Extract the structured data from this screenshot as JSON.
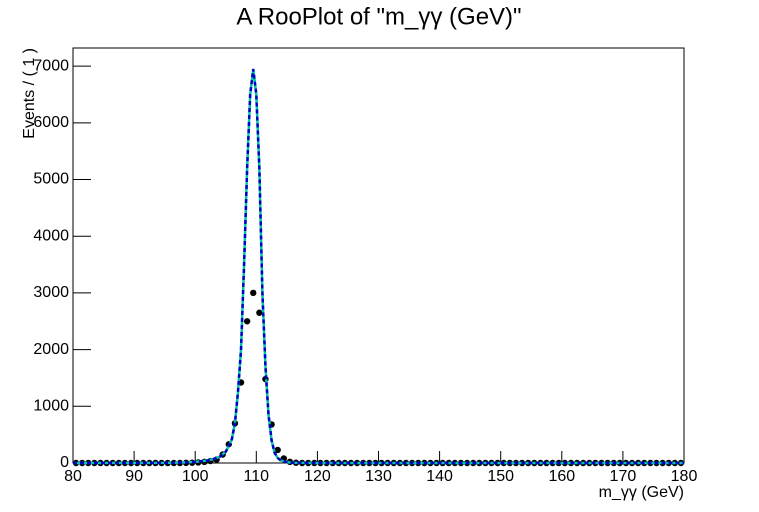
{
  "chart_data": {
    "type": "scatter",
    "title": "A RooPlot of \"m_γγ (GeV)\"",
    "x_label": "m_γγ (GeV)",
    "y_label": "Events / ( 1 )",
    "xlim": [
      80,
      180
    ],
    "xticks": [
      80,
      90,
      100,
      110,
      120,
      130,
      140,
      150,
      160,
      170,
      180
    ],
    "ylim": [
      0,
      7320
    ],
    "yticks": [
      0,
      1000,
      2000,
      3000,
      4000,
      5000,
      6000,
      7000
    ],
    "series": [
      {
        "type": "scatter",
        "color": "#000000",
        "x": [
          80.5,
          81.5,
          82.5,
          83.5,
          84.5,
          85.5,
          86.5,
          87.5,
          88.5,
          89.5,
          90.5,
          91.5,
          92.5,
          93.5,
          94.5,
          95.5,
          96.5,
          97.5,
          98.5,
          99.5,
          100.5,
          101.5,
          102.5,
          103.5,
          104.5,
          105.5,
          106.5,
          107.5,
          108.5,
          109.5,
          110.5,
          111.5,
          112.5,
          113.5,
          114.5,
          115.5,
          116.5,
          117.5,
          118.5,
          119.5,
          120.5,
          121.5,
          122.5,
          123.5,
          124.5,
          125.5,
          126.5,
          127.5,
          128.5,
          129.5,
          130.5,
          131.5,
          132.5,
          133.5,
          134.5,
          135.5,
          136.5,
          137.5,
          138.5,
          139.5,
          140.5,
          141.5,
          142.5,
          143.5,
          144.5,
          145.5,
          146.5,
          147.5,
          148.5,
          149.5,
          150.5,
          151.5,
          152.5,
          153.5,
          154.5,
          155.5,
          156.5,
          157.5,
          158.5,
          159.5,
          160.5,
          161.5,
          162.5,
          163.5,
          164.5,
          165.5,
          166.5,
          167.5,
          168.5,
          169.5,
          170.5,
          171.5,
          172.5,
          173.5,
          174.5,
          175.5,
          176.5,
          177.5,
          178.5,
          179.5
        ],
        "values": [
          0,
          0,
          0,
          0,
          0,
          0,
          0,
          0,
          0,
          0,
          0,
          0,
          0,
          0,
          0,
          0,
          0,
          0,
          2,
          5,
          10,
          20,
          35,
          60,
          150,
          330,
          700,
          1420,
          2500,
          3000,
          2650,
          1480,
          680,
          230,
          80,
          20,
          5,
          0,
          0,
          0,
          0,
          0,
          0,
          0,
          0,
          0,
          0,
          0,
          0,
          0,
          0,
          0,
          0,
          0,
          0,
          0,
          0,
          0,
          0,
          0,
          0,
          0,
          0,
          0,
          0,
          0,
          0,
          0,
          0,
          0,
          0,
          0,
          0,
          0,
          0,
          0,
          0,
          0,
          0,
          0,
          0,
          0,
          0,
          0,
          0,
          0,
          0,
          0,
          0,
          0,
          0,
          0,
          0,
          0,
          0,
          0,
          0,
          0,
          0,
          0
        ]
      },
      {
        "type": "line",
        "color": "#00c8a0",
        "x": [
          80,
          95,
          98,
          100,
          102,
          103,
          104,
          105,
          105.5,
          106,
          106.5,
          107,
          107.5,
          108,
          108.5,
          109,
          109.5,
          110,
          110.5,
          111,
          111.5,
          112,
          112.5,
          113,
          113.5,
          114,
          115,
          116,
          120,
          180
        ],
        "values": [
          0,
          2,
          8,
          20,
          45,
          70,
          110,
          200,
          300,
          420,
          700,
          1250,
          2000,
          3500,
          5200,
          6500,
          6950,
          6500,
          5200,
          3000,
          1700,
          850,
          400,
          180,
          90,
          45,
          15,
          5,
          0,
          0
        ]
      },
      {
        "type": "line",
        "color": "#0000c8",
        "dashed": true,
        "x": [
          80,
          95,
          98,
          100,
          102,
          103,
          104,
          105,
          105.5,
          106,
          106.5,
          107,
          107.5,
          108,
          108.5,
          109,
          109.5,
          110,
          110.5,
          111,
          111.5,
          112,
          112.5,
          113,
          113.5,
          114,
          115,
          116,
          120,
          180
        ],
        "values": [
          0,
          2,
          8,
          20,
          45,
          70,
          110,
          200,
          300,
          420,
          700,
          1250,
          2000,
          3500,
          5200,
          6500,
          6950,
          6500,
          5200,
          3000,
          1700,
          850,
          400,
          180,
          90,
          45,
          15,
          5,
          0,
          0
        ]
      }
    ]
  }
}
